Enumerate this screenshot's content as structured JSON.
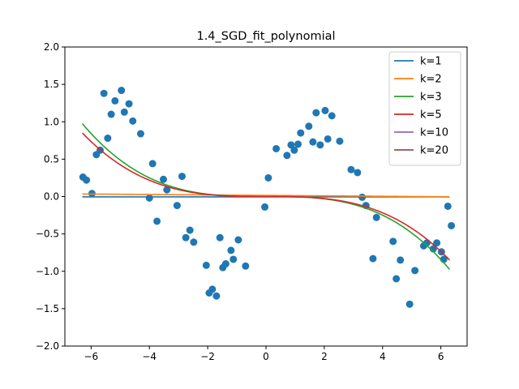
{
  "chart_data": {
    "type": "scatter",
    "title": "1.4_SGD_fit_polynomial",
    "xlabel": "",
    "ylabel": "",
    "xlim": [
      -6.9,
      6.9
    ],
    "ylim": [
      -2.0,
      2.0
    ],
    "xticks": [
      -6,
      -4,
      -2,
      0,
      2,
      4,
      6
    ],
    "yticks": [
      -2.0,
      -1.5,
      -1.0,
      -0.5,
      0.0,
      0.5,
      1.0,
      1.5,
      2.0
    ],
    "xtick_labels": [
      "−6",
      "−4",
      "−2",
      "0",
      "2",
      "4",
      "6"
    ],
    "ytick_labels": [
      "−2.0",
      "−1.5",
      "−1.0",
      "−0.5",
      "0.0",
      "0.5",
      "1.0",
      "1.5",
      "2.0"
    ],
    "grid": false,
    "legend_position": "top-right",
    "scatter": {
      "color": "#1f77b4",
      "points": [
        [
          -6.28,
          0.26
        ],
        [
          -6.16,
          0.22
        ],
        [
          -5.97,
          0.04
        ],
        [
          -5.82,
          0.56
        ],
        [
          -5.69,
          0.62
        ],
        [
          -5.56,
          1.38
        ],
        [
          -5.43,
          0.78
        ],
        [
          -5.31,
          1.1
        ],
        [
          -5.18,
          1.28
        ],
        [
          -4.96,
          1.42
        ],
        [
          -4.86,
          1.13
        ],
        [
          -4.7,
          1.24
        ],
        [
          -4.57,
          1.01
        ],
        [
          -4.3,
          0.84
        ],
        [
          -4.0,
          -0.02
        ],
        [
          -3.89,
          0.44
        ],
        [
          -3.74,
          -0.33
        ],
        [
          -3.52,
          0.23
        ],
        [
          -3.4,
          0.09
        ],
        [
          -3.05,
          -0.12
        ],
        [
          -2.88,
          0.27
        ],
        [
          -2.75,
          -0.55
        ],
        [
          -2.61,
          -0.45
        ],
        [
          -2.48,
          -0.61
        ],
        [
          -2.05,
          -0.92
        ],
        [
          -1.95,
          -1.29
        ],
        [
          -1.84,
          -1.24
        ],
        [
          -1.7,
          -1.33
        ],
        [
          -1.58,
          -0.55
        ],
        [
          -1.48,
          -0.95
        ],
        [
          -1.38,
          -0.9
        ],
        [
          -1.2,
          -0.72
        ],
        [
          -1.12,
          -0.84
        ],
        [
          -0.95,
          -0.58
        ],
        [
          -0.7,
          -0.93
        ],
        [
          -0.04,
          -0.14
        ],
        [
          0.08,
          0.25
        ],
        [
          0.35,
          0.64
        ],
        [
          0.72,
          0.55
        ],
        [
          0.86,
          0.69
        ],
        [
          0.97,
          0.62
        ],
        [
          1.1,
          0.7
        ],
        [
          1.19,
          0.85
        ],
        [
          1.47,
          0.94
        ],
        [
          1.61,
          0.73
        ],
        [
          1.72,
          1.12
        ],
        [
          1.86,
          0.69
        ],
        [
          2.03,
          1.15
        ],
        [
          2.12,
          0.77
        ],
        [
          2.26,
          1.08
        ],
        [
          2.53,
          0.74
        ],
        [
          2.92,
          0.36
        ],
        [
          3.14,
          0.32
        ],
        [
          3.3,
          -0.01
        ],
        [
          3.43,
          -0.12
        ],
        [
          3.67,
          -0.83
        ],
        [
          3.79,
          -0.28
        ],
        [
          4.36,
          -0.6
        ],
        [
          4.47,
          -1.1
        ],
        [
          4.61,
          -0.85
        ],
        [
          4.93,
          -1.44
        ],
        [
          5.11,
          -0.99
        ],
        [
          5.41,
          -0.66
        ],
        [
          5.52,
          -0.62
        ],
        [
          5.74,
          -0.7
        ],
        [
          5.86,
          -0.62
        ],
        [
          6.02,
          -0.74
        ],
        [
          6.1,
          -0.84
        ],
        [
          6.24,
          -0.13
        ],
        [
          6.36,
          -0.39
        ]
      ]
    },
    "series": [
      {
        "name": "k=1",
        "color": "#1f77b4",
        "curve": {
          "kind": "constant",
          "c": -0.005
        }
      },
      {
        "name": "k=2",
        "color": "#ff7f0e",
        "curve": {
          "kind": "linear",
          "c0": 0.015,
          "c1": -0.003
        }
      },
      {
        "name": "k=3",
        "color": "#2ca02c",
        "curve": {
          "kind": "cubic",
          "a": -0.0039
        }
      },
      {
        "name": "k=5",
        "color": "#d62728",
        "curve": {
          "kind": "cubic",
          "a": -0.0034
        }
      },
      {
        "name": "k=10",
        "color": "#9467bd",
        "curve": {
          "kind": "hidden"
        }
      },
      {
        "name": "k=20",
        "color": "#8c564b",
        "curve": {
          "kind": "hidden"
        }
      }
    ]
  }
}
